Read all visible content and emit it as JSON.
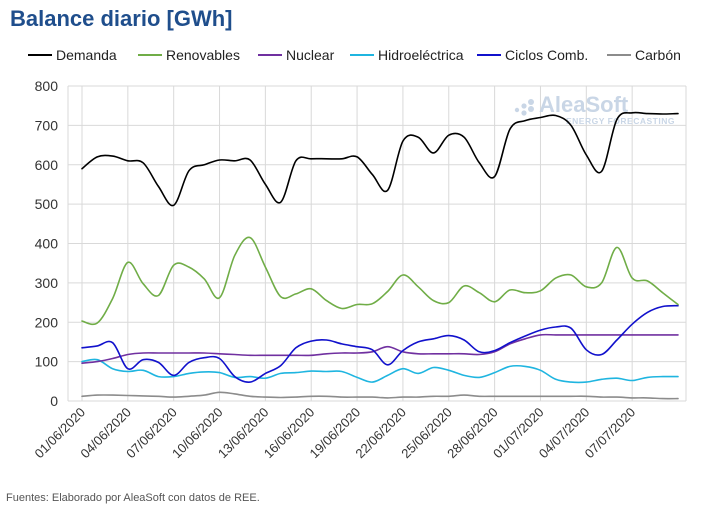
{
  "title": "Balance diario [GWh]",
  "source": "Fuentes: Elaborado por AleaSoft con datos de REE.",
  "watermark": {
    "brand": "AleaSoft",
    "tagline": "ENERGY FORECASTING"
  },
  "chart_data": {
    "type": "line",
    "title": "Balance diario [GWh]",
    "xlabel": "",
    "ylabel": "",
    "ylim": [
      0,
      800
    ],
    "yticks": [
      0,
      100,
      200,
      300,
      400,
      500,
      600,
      700,
      800
    ],
    "grid": true,
    "legend_position": "top",
    "x_tick_labels": [
      "01/06/2020",
      "04/06/2020",
      "07/06/2020",
      "10/06/2020",
      "13/06/2020",
      "16/06/2020",
      "19/06/2020",
      "22/06/2020",
      "25/06/2020",
      "28/06/2020",
      "01/07/2020",
      "04/07/2020",
      "07/07/2020"
    ],
    "x": [
      "01/06/2020",
      "02/06/2020",
      "03/06/2020",
      "04/06/2020",
      "05/06/2020",
      "06/06/2020",
      "07/06/2020",
      "08/06/2020",
      "09/06/2020",
      "10/06/2020",
      "11/06/2020",
      "12/06/2020",
      "13/06/2020",
      "14/06/2020",
      "15/06/2020",
      "16/06/2020",
      "17/06/2020",
      "18/06/2020",
      "19/06/2020",
      "20/06/2020",
      "21/06/2020",
      "22/06/2020",
      "23/06/2020",
      "24/06/2020",
      "25/06/2020",
      "26/06/2020",
      "27/06/2020",
      "28/06/2020",
      "29/06/2020",
      "30/06/2020",
      "01/07/2020",
      "02/07/2020",
      "03/07/2020",
      "04/07/2020",
      "05/07/2020",
      "06/07/2020",
      "07/07/2020",
      "08/07/2020",
      "09/07/2020",
      "10/07/2020"
    ],
    "series": [
      {
        "name": "Demanda",
        "color": "#000000",
        "values": [
          590,
          620,
          622,
          610,
          605,
          545,
          497,
          585,
          600,
          612,
          610,
          612,
          550,
          505,
          610,
          615,
          615,
          615,
          620,
          575,
          535,
          660,
          670,
          630,
          675,
          670,
          605,
          570,
          690,
          712,
          720,
          725,
          700,
          625,
          583,
          715,
          732,
          730,
          729,
          730
        ]
      },
      {
        "name": "Renovables",
        "color": "#70ad47",
        "values": [
          203,
          198,
          260,
          352,
          298,
          268,
          345,
          340,
          310,
          262,
          370,
          415,
          340,
          265,
          272,
          285,
          255,
          235,
          245,
          247,
          278,
          320,
          290,
          255,
          250,
          292,
          275,
          252,
          282,
          275,
          280,
          312,
          320,
          290,
          300,
          390,
          312,
          305,
          275,
          245
        ]
      },
      {
        "name": "Nuclear",
        "color": "#7030a0",
        "values": [
          96,
          100,
          108,
          118,
          122,
          122,
          122,
          122,
          122,
          120,
          118,
          116,
          116,
          116,
          116,
          116,
          120,
          122,
          122,
          125,
          138,
          125,
          120,
          120,
          120,
          120,
          118,
          125,
          145,
          158,
          168,
          168,
          168,
          168,
          168,
          168,
          168,
          168,
          168,
          168
        ]
      },
      {
        "name": "Hidroeléctrica",
        "color": "#1fb5e0",
        "values": [
          100,
          105,
          82,
          75,
          78,
          62,
          62,
          70,
          74,
          72,
          60,
          62,
          58,
          70,
          72,
          76,
          75,
          75,
          60,
          48,
          65,
          82,
          70,
          85,
          78,
          65,
          60,
          72,
          88,
          88,
          78,
          55,
          48,
          48,
          55,
          58,
          52,
          60,
          62,
          62
        ]
      },
      {
        "name": "Ciclos Comb.",
        "color": "#1111cc",
        "values": [
          135,
          140,
          148,
          82,
          105,
          98,
          65,
          98,
          110,
          108,
          62,
          48,
          70,
          90,
          135,
          152,
          155,
          145,
          138,
          130,
          92,
          128,
          150,
          158,
          166,
          155,
          125,
          128,
          148,
          165,
          180,
          188,
          185,
          130,
          118,
          155,
          195,
          225,
          240,
          242
        ]
      },
      {
        "name": "Carbón",
        "color": "#8c8c8c",
        "values": [
          12,
          15,
          15,
          14,
          13,
          12,
          10,
          12,
          15,
          22,
          18,
          12,
          10,
          9,
          10,
          12,
          12,
          10,
          10,
          10,
          8,
          10,
          10,
          12,
          12,
          15,
          12,
          12,
          12,
          12,
          12,
          12,
          12,
          12,
          10,
          10,
          8,
          8,
          6,
          6
        ]
      }
    ]
  }
}
